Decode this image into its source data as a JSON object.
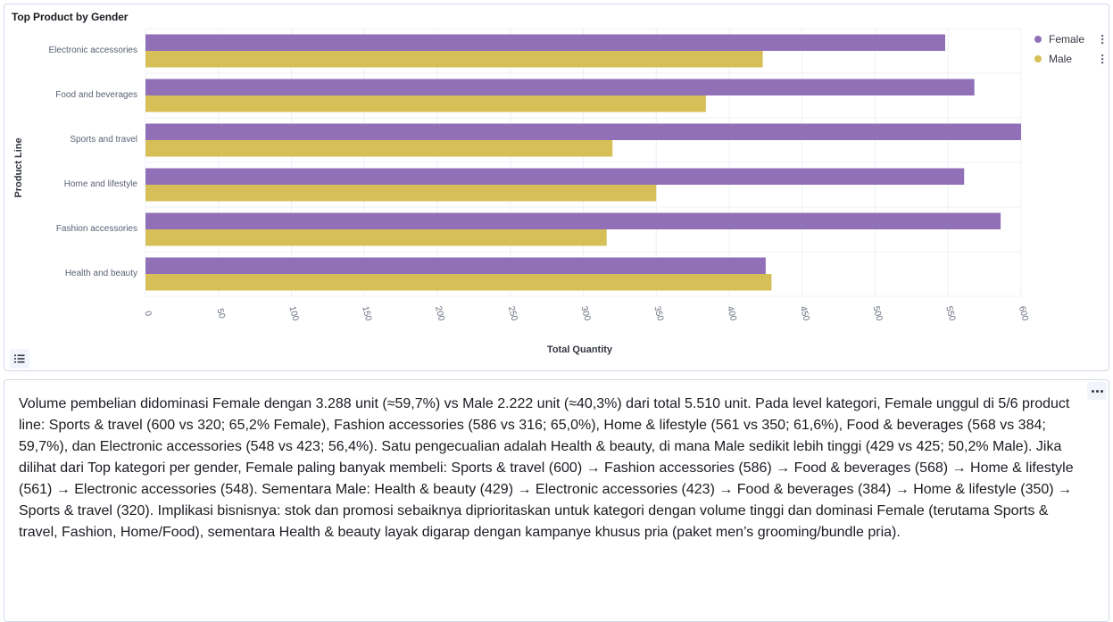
{
  "chart_panel": {
    "title": "Top Product by Gender"
  },
  "chart_data": {
    "type": "bar",
    "orientation": "horizontal",
    "title": "Top Product by Gender",
    "xlabel": "Total Quantity",
    "ylabel": "Product Line",
    "categories": [
      "Electronic accessories",
      "Food and beverages",
      "Sports and travel",
      "Home and lifestyle",
      "Fashion accessories",
      "Health and beauty"
    ],
    "series": [
      {
        "name": "Female",
        "color": "#9170b8",
        "values": [
          548,
          568,
          600,
          561,
          586,
          425
        ]
      },
      {
        "name": "Male",
        "color": "#d6bf57",
        "values": [
          423,
          384,
          320,
          350,
          316,
          429
        ]
      }
    ],
    "xlim": [
      0,
      600
    ],
    "xticks": [
      0,
      50,
      100,
      150,
      200,
      250,
      300,
      350,
      400,
      450,
      500,
      550,
      600
    ],
    "grid": true,
    "legend_position": "top-right"
  },
  "text_panel": {
    "body": "Volume pembelian didominasi Female dengan 3.288 unit (≈59,7%) vs Male 2.222 unit (≈40,3%) dari total 5.510 unit. Pada level kategori, Female unggul di 5/6 product line: Sports & travel (600 vs 320; 65,2% Female), Fashion accessories (586 vs 316; 65,0%), Home & lifestyle (561 vs 350; 61,6%), Food & beverages (568 vs 384; 59,7%), dan Electronic accessories (548 vs 423; 56,4%). Satu pengecualian adalah Health & beauty, di mana Male sedikit lebih tinggi (429 vs 425; 50,2% Male). Jika dilihat dari Top kategori per gender, Female paling banyak membeli: Sports & travel (600) → Fashion accessories (586) → Food & beverages (568) → Home & lifestyle (561) → Electronic accessories (548). Sementara Male: Health & beauty (429) → Electronic accessories (423) → Food & beverages (384) → Home & lifestyle (350) → Sports & travel (320). Implikasi bisnisnya: stok dan promosi sebaiknya diprioritaskan untuk kategori dengan volume tinggi dan dominasi Female (terutama Sports & travel, Fashion, Home/Food), sementara Health & beauty layak digarap dengan kampanye khusus pria (paket men’s grooming/bundle pria)."
  },
  "icons": {
    "legend_toggle": "list-icon",
    "panel_options": "ellipsis-icon",
    "legend_item_menu": "vertical-dots-icon"
  }
}
